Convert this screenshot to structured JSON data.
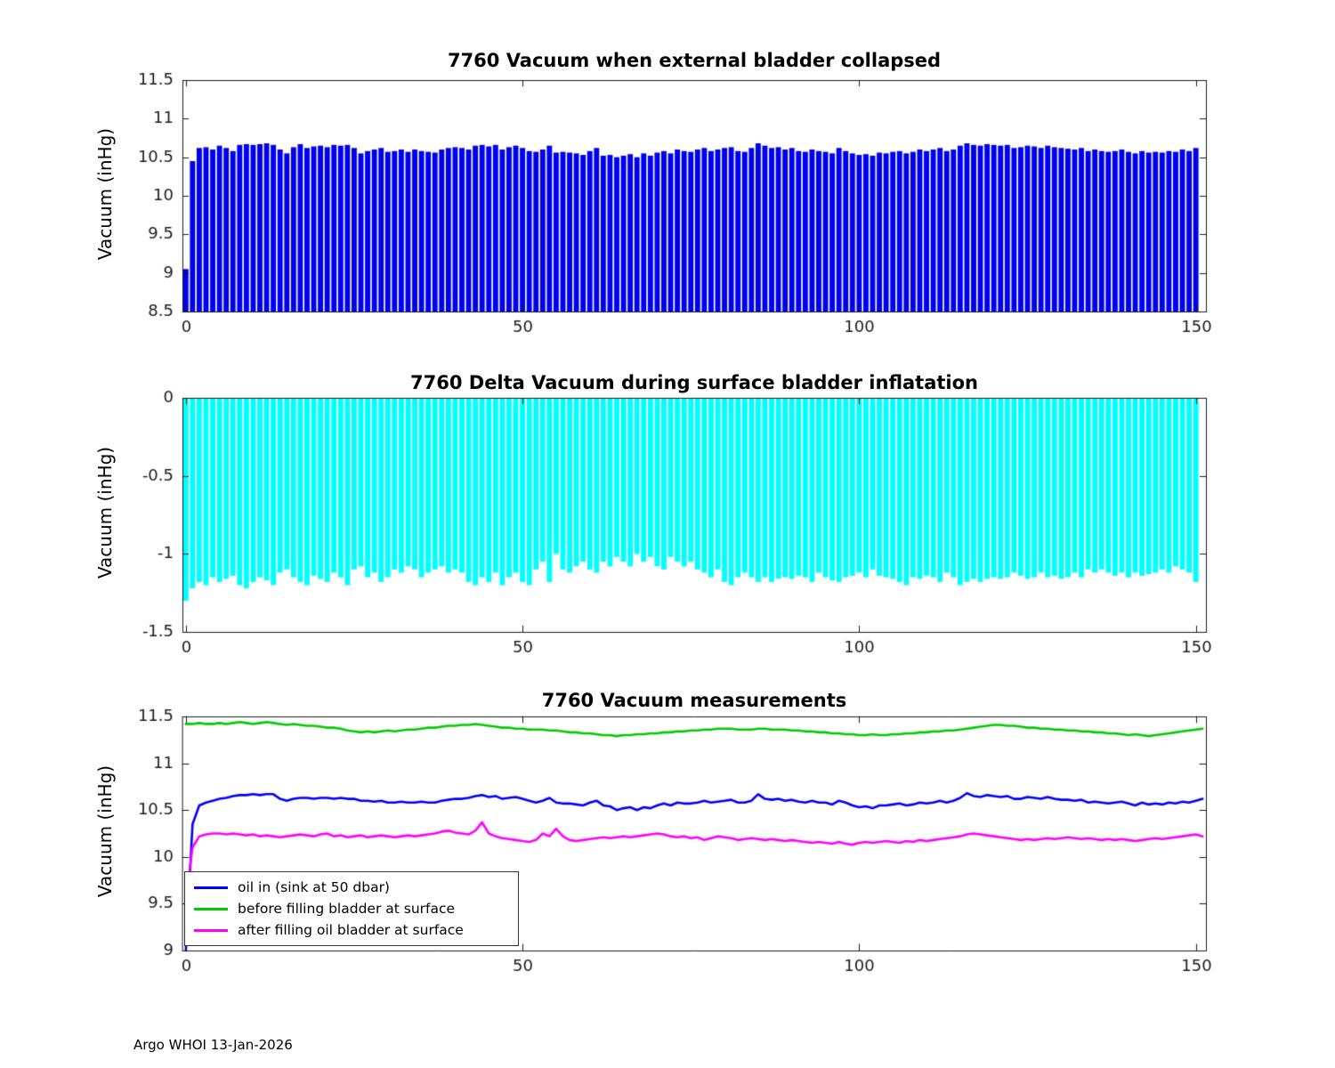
{
  "footer": {
    "text": "Argo WHOI 13-Jan-2026"
  },
  "chart_data": [
    {
      "type": "bar",
      "title": "7760 Vacuum when external bladder collapsed",
      "ylabel": "Vacuum (inHg)",
      "color": "#0000ee",
      "xlim": [
        -0.5,
        151.5
      ],
      "ylim": [
        8.5,
        11.5
      ],
      "xticks": [
        0,
        50,
        100,
        150
      ],
      "yticks": [
        8.5,
        9,
        9.5,
        10,
        10.5,
        11,
        11.5
      ],
      "x_start": 0,
      "grid": false,
      "values": [
        9.05,
        10.45,
        10.62,
        10.63,
        10.6,
        10.65,
        10.62,
        10.58,
        10.66,
        10.67,
        10.66,
        10.67,
        10.68,
        10.66,
        10.6,
        10.55,
        10.63,
        10.67,
        10.62,
        10.64,
        10.65,
        10.63,
        10.66,
        10.65,
        10.66,
        10.62,
        10.55,
        10.58,
        10.6,
        10.62,
        10.57,
        10.58,
        10.6,
        10.57,
        10.6,
        10.58,
        10.57,
        10.56,
        10.6,
        10.62,
        10.63,
        10.62,
        10.6,
        10.65,
        10.66,
        10.64,
        10.66,
        10.6,
        10.63,
        10.65,
        10.62,
        10.58,
        10.57,
        10.6,
        10.65,
        10.56,
        10.57,
        10.56,
        10.55,
        10.53,
        10.58,
        10.62,
        10.52,
        10.53,
        10.5,
        10.52,
        10.54,
        10.5,
        10.55,
        10.52,
        10.56,
        10.58,
        10.55,
        10.6,
        10.58,
        10.57,
        10.6,
        10.62,
        10.58,
        10.6,
        10.62,
        10.63,
        10.58,
        10.57,
        10.62,
        10.68,
        10.65,
        10.62,
        10.63,
        10.6,
        10.62,
        10.58,
        10.57,
        10.6,
        10.58,
        10.57,
        10.55,
        10.62,
        10.58,
        10.55,
        10.53,
        10.54,
        10.52,
        10.56,
        10.55,
        10.57,
        10.58,
        10.55,
        10.57,
        10.6,
        10.58,
        10.6,
        10.62,
        10.58,
        10.6,
        10.65,
        10.68,
        10.66,
        10.65,
        10.67,
        10.66,
        10.65,
        10.66,
        10.62,
        10.63,
        10.65,
        10.64,
        10.62,
        10.65,
        10.63,
        10.62,
        10.61,
        10.6,
        10.62,
        10.58,
        10.6,
        10.58,
        10.57,
        10.58,
        10.6,
        10.57,
        10.55,
        10.58,
        10.56,
        10.57,
        10.56,
        10.58,
        10.57,
        10.6,
        10.58,
        10.62
      ]
    },
    {
      "type": "bar",
      "title": "7760 Delta Vacuum during surface bladder inflatation",
      "ylabel": "Vacuum (inHg)",
      "color": "#00ffff",
      "xlim": [
        -0.5,
        151.5
      ],
      "ylim": [
        -1.5,
        0
      ],
      "xticks": [
        0,
        50,
        100,
        150
      ],
      "yticks": [
        -1.5,
        -1,
        -0.5,
        0
      ],
      "x_start": 0,
      "baseline": 0,
      "grid": false,
      "values": [
        -1.3,
        -1.22,
        -1.18,
        -1.2,
        -1.15,
        -1.18,
        -1.16,
        -1.14,
        -1.2,
        -1.22,
        -1.18,
        -1.15,
        -1.17,
        -1.2,
        -1.12,
        -1.1,
        -1.15,
        -1.18,
        -1.2,
        -1.14,
        -1.16,
        -1.18,
        -1.12,
        -1.15,
        -1.2,
        -1.1,
        -1.08,
        -1.15,
        -1.12,
        -1.18,
        -1.15,
        -1.1,
        -1.12,
        -1.08,
        -1.1,
        -1.15,
        -1.12,
        -1.1,
        -1.08,
        -1.12,
        -1.1,
        -1.12,
        -1.18,
        -1.2,
        -1.15,
        -1.18,
        -1.12,
        -1.2,
        -1.15,
        -1.12,
        -1.18,
        -1.2,
        -1.1,
        -1.05,
        -1.18,
        -1.0,
        -1.1,
        -1.12,
        -1.08,
        -1.05,
        -1.1,
        -1.12,
        -1.05,
        -1.08,
        -1.02,
        -1.05,
        -1.08,
        -1.0,
        -1.05,
        -1.02,
        -1.08,
        -1.1,
        -1.02,
        -1.05,
        -1.08,
        -1.05,
        -1.1,
        -1.12,
        -1.15,
        -1.1,
        -1.18,
        -1.2,
        -1.15,
        -1.12,
        -1.15,
        -1.18,
        -1.15,
        -1.18,
        -1.16,
        -1.15,
        -1.16,
        -1.14,
        -1.15,
        -1.18,
        -1.12,
        -1.15,
        -1.17,
        -1.18,
        -1.15,
        -1.14,
        -1.12,
        -1.15,
        -1.1,
        -1.14,
        -1.15,
        -1.16,
        -1.18,
        -1.2,
        -1.15,
        -1.16,
        -1.14,
        -1.15,
        -1.18,
        -1.12,
        -1.15,
        -1.2,
        -1.18,
        -1.16,
        -1.18,
        -1.16,
        -1.15,
        -1.16,
        -1.15,
        -1.12,
        -1.14,
        -1.16,
        -1.15,
        -1.12,
        -1.15,
        -1.14,
        -1.16,
        -1.15,
        -1.12,
        -1.15,
        -1.1,
        -1.12,
        -1.1,
        -1.12,
        -1.14,
        -1.12,
        -1.15,
        -1.12,
        -1.14,
        -1.13,
        -1.12,
        -1.1,
        -1.12,
        -1.08,
        -1.1,
        -1.12,
        -1.18
      ]
    },
    {
      "type": "line",
      "title": "7760 Vacuum measurements",
      "ylabel": "Vacuum (inHg)",
      "xlim": [
        -0.5,
        151.5
      ],
      "ylim": [
        9,
        11.5
      ],
      "xticks": [
        0,
        50,
        100,
        150
      ],
      "yticks": [
        9,
        9.5,
        10,
        10.5,
        11,
        11.5
      ],
      "x_start": 0,
      "grid": false,
      "legend_position": "bottom-left",
      "series": [
        {
          "name": "oil in (sink at 50 dbar)",
          "color": "#0000ff",
          "values": [
            9.0,
            10.35,
            10.55,
            10.58,
            10.6,
            10.62,
            10.63,
            10.65,
            10.66,
            10.66,
            10.67,
            10.66,
            10.67,
            10.67,
            10.62,
            10.6,
            10.62,
            10.63,
            10.63,
            10.62,
            10.63,
            10.63,
            10.62,
            10.63,
            10.62,
            10.62,
            10.6,
            10.6,
            10.59,
            10.6,
            10.58,
            10.58,
            10.59,
            10.58,
            10.58,
            10.59,
            10.58,
            10.58,
            10.6,
            10.61,
            10.62,
            10.62,
            10.63,
            10.65,
            10.66,
            10.64,
            10.65,
            10.62,
            10.63,
            10.64,
            10.62,
            10.6,
            10.58,
            10.6,
            10.63,
            10.58,
            10.57,
            10.57,
            10.56,
            10.55,
            10.58,
            10.6,
            10.55,
            10.54,
            10.5,
            10.52,
            10.53,
            10.5,
            10.53,
            10.52,
            10.55,
            10.57,
            10.55,
            10.58,
            10.57,
            10.57,
            10.58,
            10.6,
            10.58,
            10.59,
            10.6,
            10.61,
            10.58,
            10.58,
            10.6,
            10.67,
            10.62,
            10.61,
            10.62,
            10.6,
            10.61,
            10.59,
            10.58,
            10.6,
            10.58,
            10.58,
            10.56,
            10.6,
            10.58,
            10.55,
            10.53,
            10.54,
            10.52,
            10.55,
            10.55,
            10.56,
            10.57,
            10.55,
            10.56,
            10.58,
            10.57,
            10.58,
            10.6,
            10.58,
            10.6,
            10.63,
            10.68,
            10.65,
            10.64,
            10.66,
            10.65,
            10.64,
            10.65,
            10.62,
            10.62,
            10.64,
            10.63,
            10.62,
            10.64,
            10.62,
            10.61,
            10.61,
            10.6,
            10.61,
            10.58,
            10.59,
            10.58,
            10.57,
            10.58,
            10.59,
            10.57,
            10.55,
            10.58,
            10.56,
            10.57,
            10.56,
            10.58,
            10.57,
            10.59,
            10.58,
            10.6,
            10.62
          ]
        },
        {
          "name": "before filling bladder at surface",
          "color": "#00cc00",
          "values": [
            11.42,
            11.42,
            11.43,
            11.42,
            11.42,
            11.43,
            11.42,
            11.43,
            11.44,
            11.43,
            11.42,
            11.43,
            11.44,
            11.43,
            11.42,
            11.41,
            11.42,
            11.41,
            11.4,
            11.4,
            11.39,
            11.38,
            11.38,
            11.37,
            11.35,
            11.34,
            11.33,
            11.34,
            11.33,
            11.34,
            11.35,
            11.34,
            11.35,
            11.36,
            11.36,
            11.37,
            11.38,
            11.38,
            11.39,
            11.4,
            11.4,
            11.41,
            11.41,
            11.42,
            11.41,
            11.4,
            11.39,
            11.38,
            11.38,
            11.37,
            11.37,
            11.36,
            11.36,
            11.36,
            11.35,
            11.35,
            11.34,
            11.33,
            11.33,
            11.32,
            11.32,
            11.31,
            11.3,
            11.3,
            11.29,
            11.3,
            11.3,
            11.31,
            11.31,
            11.32,
            11.32,
            11.33,
            11.33,
            11.34,
            11.34,
            11.35,
            11.35,
            11.36,
            11.36,
            11.37,
            11.37,
            11.37,
            11.36,
            11.36,
            11.36,
            11.37,
            11.37,
            11.36,
            11.36,
            11.36,
            11.35,
            11.35,
            11.34,
            11.34,
            11.33,
            11.33,
            11.32,
            11.32,
            11.31,
            11.31,
            11.3,
            11.3,
            11.31,
            11.3,
            11.3,
            11.31,
            11.31,
            11.32,
            11.32,
            11.33,
            11.33,
            11.34,
            11.34,
            11.35,
            11.35,
            11.36,
            11.37,
            11.38,
            11.39,
            11.4,
            11.41,
            11.41,
            11.4,
            11.4,
            11.39,
            11.38,
            11.38,
            11.37,
            11.37,
            11.36,
            11.36,
            11.35,
            11.35,
            11.34,
            11.34,
            11.33,
            11.33,
            11.32,
            11.32,
            11.31,
            11.3,
            11.31,
            11.3,
            11.29,
            11.3,
            11.31,
            11.32,
            11.33,
            11.34,
            11.35,
            11.36,
            11.37
          ]
        },
        {
          "name": "after filling oil bladder at surface",
          "color": "#ff00ff",
          "values": [
            9.55,
            10.1,
            10.22,
            10.24,
            10.25,
            10.25,
            10.24,
            10.25,
            10.24,
            10.23,
            10.24,
            10.22,
            10.23,
            10.22,
            10.21,
            10.22,
            10.23,
            10.24,
            10.23,
            10.22,
            10.24,
            10.25,
            10.22,
            10.23,
            10.21,
            10.22,
            10.23,
            10.21,
            10.22,
            10.23,
            10.22,
            10.21,
            10.22,
            10.23,
            10.22,
            10.23,
            10.24,
            10.25,
            10.27,
            10.28,
            10.26,
            10.25,
            10.24,
            10.28,
            10.37,
            10.25,
            10.22,
            10.2,
            10.19,
            10.18,
            10.17,
            10.16,
            10.18,
            10.25,
            10.22,
            10.3,
            10.22,
            10.18,
            10.17,
            10.18,
            10.19,
            10.2,
            10.21,
            10.2,
            10.21,
            10.22,
            10.21,
            10.22,
            10.23,
            10.24,
            10.25,
            10.24,
            10.22,
            10.21,
            10.22,
            10.2,
            10.21,
            10.18,
            10.2,
            10.22,
            10.21,
            10.2,
            10.18,
            10.19,
            10.2,
            10.19,
            10.18,
            10.19,
            10.18,
            10.17,
            10.18,
            10.17,
            10.16,
            10.15,
            10.16,
            10.15,
            10.14,
            10.16,
            10.14,
            10.13,
            10.15,
            10.16,
            10.15,
            10.16,
            10.17,
            10.16,
            10.15,
            10.17,
            10.16,
            10.18,
            10.17,
            10.18,
            10.19,
            10.2,
            10.21,
            10.22,
            10.24,
            10.25,
            10.24,
            10.23,
            10.22,
            10.21,
            10.2,
            10.19,
            10.18,
            10.19,
            10.18,
            10.19,
            10.2,
            10.19,
            10.2,
            10.21,
            10.2,
            10.19,
            10.2,
            10.19,
            10.18,
            10.19,
            10.18,
            10.19,
            10.18,
            10.17,
            10.18,
            10.19,
            10.2,
            10.19,
            10.2,
            10.21,
            10.22,
            10.23,
            10.24,
            10.22
          ]
        }
      ]
    }
  ]
}
